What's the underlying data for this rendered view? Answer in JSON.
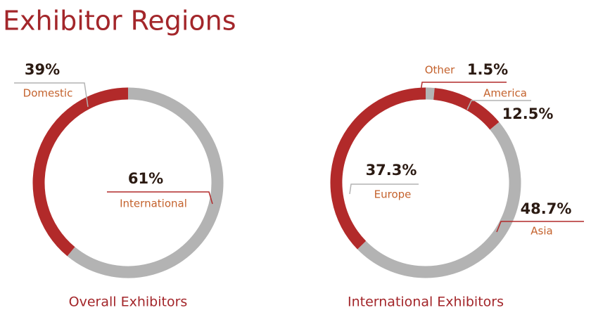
{
  "title": "Exhibitor Regions",
  "chart_data": [
    {
      "type": "pie",
      "title": "Overall Exhibitors",
      "categories": [
        "International",
        "Domestic"
      ],
      "values": [
        61,
        39
      ],
      "value_labels": [
        "61%",
        "39%"
      ],
      "colors": [
        "#b3b3b3",
        "#b22a2a"
      ]
    },
    {
      "type": "pie",
      "title": "International Exhibitors",
      "categories": [
        "Other",
        "America",
        "Asia",
        "Europe"
      ],
      "values": [
        1.5,
        12.5,
        48.7,
        37.3
      ],
      "value_labels": [
        "1.5%",
        "12.5%",
        "48.7%",
        "37.3%"
      ],
      "colors": [
        "#b3b3b3",
        "#b22a2a",
        "#b3b3b3",
        "#b22a2a"
      ]
    }
  ]
}
